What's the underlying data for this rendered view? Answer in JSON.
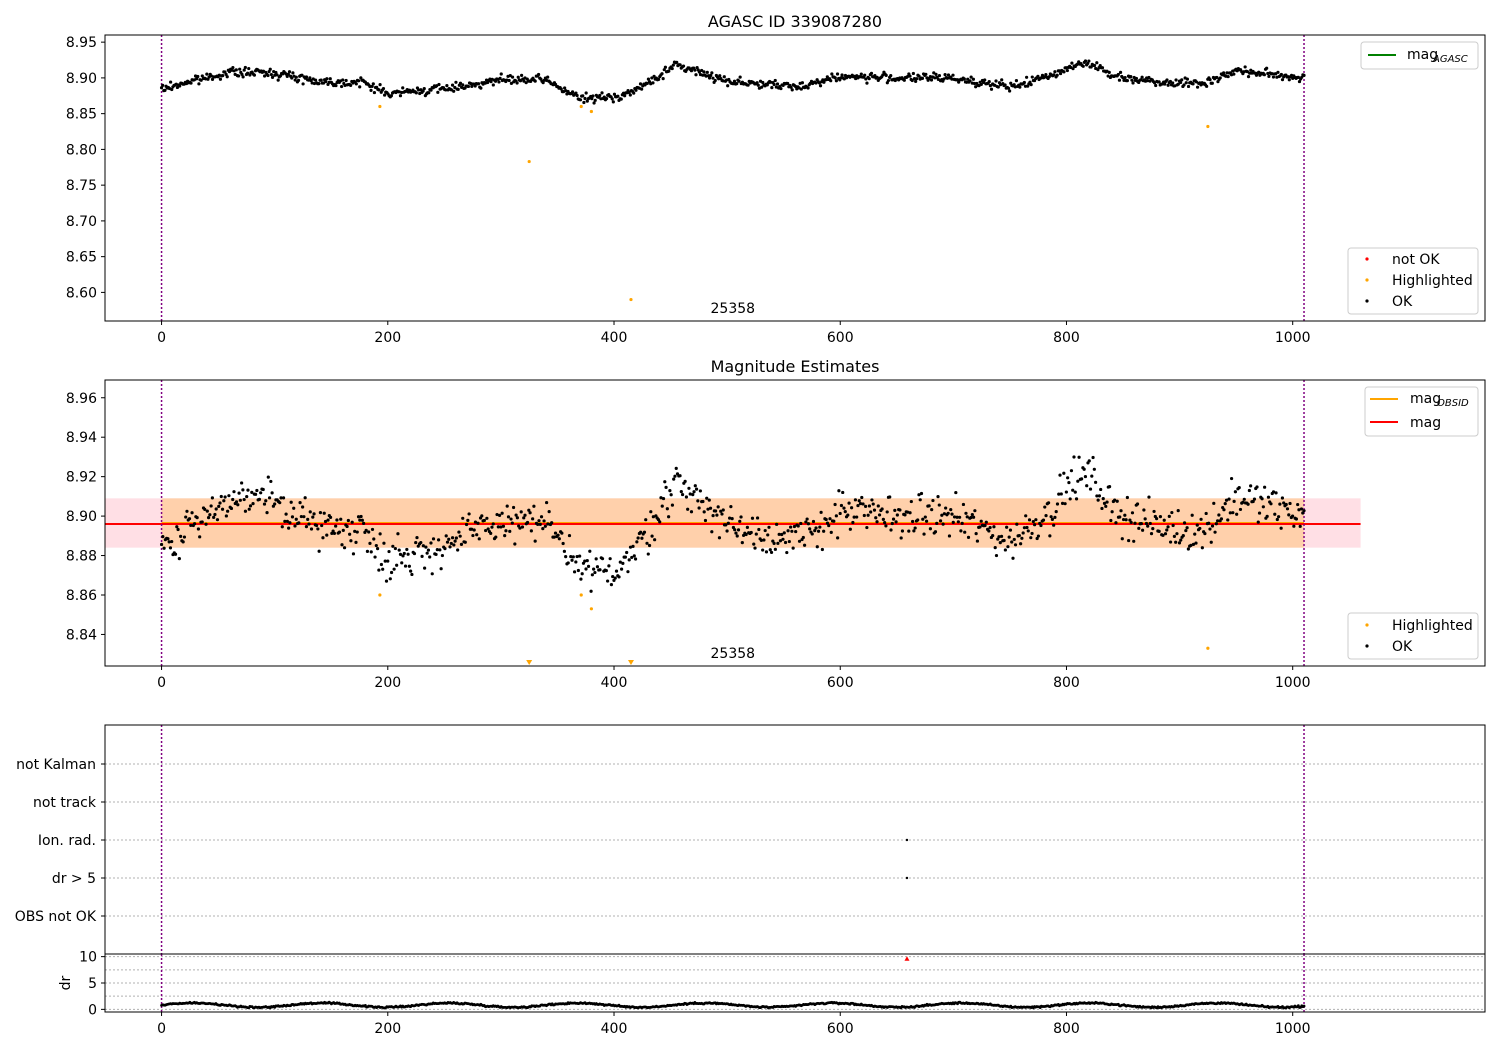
{
  "chart_data": [
    {
      "type": "scatter",
      "title": "AGASC ID 339087280",
      "xlim": [
        -50,
        1170
      ],
      "ylim": [
        8.56,
        8.96
      ],
      "x_ticks": [
        0,
        200,
        400,
        600,
        800,
        1000
      ],
      "y_ticks": [
        8.6,
        8.65,
        8.7,
        8.75,
        8.8,
        8.85,
        8.9,
        8.95
      ],
      "obsid_label": "25358",
      "obsid_label_x": 505,
      "vlines_x": [
        0,
        1010
      ],
      "grid": false,
      "legends": [
        {
          "placement": "top-right",
          "entries": [
            {
              "label": "mag",
              "sub": "AGASC",
              "color": "#008000",
              "kind": "line"
            }
          ]
        },
        {
          "placement": "bottom-right",
          "entries": [
            {
              "label": "not OK",
              "color": "#ff0000",
              "kind": "dot"
            },
            {
              "label": "Highlighted",
              "color": "#ffa500",
              "kind": "dot"
            },
            {
              "label": "OK",
              "color": "#000000",
              "kind": "dot"
            }
          ]
        }
      ],
      "series": [
        {
          "name": "OK",
          "color": "#000000",
          "x_range": [
            0,
            1010
          ],
          "n": 1010,
          "trend": [
            [
              0,
              8.884
            ],
            [
              20,
              8.893
            ],
            [
              60,
              8.908
            ],
            [
              100,
              8.907
            ],
            [
              140,
              8.895
            ],
            [
              180,
              8.893
            ],
            [
              200,
              8.878
            ],
            [
              250,
              8.885
            ],
            [
              300,
              8.897
            ],
            [
              340,
              8.897
            ],
            [
              370,
              8.871
            ],
            [
              400,
              8.873
            ],
            [
              420,
              8.883
            ],
            [
              455,
              8.918
            ],
            [
              500,
              8.896
            ],
            [
              560,
              8.887
            ],
            [
              600,
              8.902
            ],
            [
              650,
              8.9
            ],
            [
              700,
              8.9
            ],
            [
              750,
              8.887
            ],
            [
              790,
              8.905
            ],
            [
              800,
              8.915
            ],
            [
              820,
              8.922
            ],
            [
              840,
              8.903
            ],
            [
              880,
              8.895
            ],
            [
              920,
              8.892
            ],
            [
              950,
              8.91
            ],
            [
              1010,
              8.9
            ]
          ],
          "noise": 0.006
        },
        {
          "name": "Highlighted",
          "color": "#ffa500",
          "points": [
            [
              193,
              8.86
            ],
            [
              325,
              8.783
            ],
            [
              371,
              8.86
            ],
            [
              380,
              8.853
            ],
            [
              415,
              8.59
            ],
            [
              925,
              8.832
            ]
          ]
        }
      ]
    },
    {
      "type": "scatter",
      "title": "Magnitude Estimates",
      "xlim": [
        -50,
        1170
      ],
      "ylim": [
        8.824,
        8.969
      ],
      "x_ticks": [
        0,
        200,
        400,
        600,
        800,
        1000
      ],
      "y_ticks": [
        8.84,
        8.86,
        8.88,
        8.9,
        8.92,
        8.94,
        8.96
      ],
      "obsid_label": "25358",
      "obsid_label_x": 505,
      "vlines_x": [
        0,
        1010
      ],
      "grid": false,
      "mag": 8.896,
      "mag_band": [
        8.884,
        8.909
      ],
      "mag_band_x": [
        -50,
        1060
      ],
      "mag_obsid": 8.8965,
      "mag_obsid_x": [
        0,
        1010
      ],
      "clipped_markers_x": [
        325,
        415
      ],
      "legends": [
        {
          "placement": "top-right",
          "entries": [
            {
              "label": "mag",
              "sub": "OBSID",
              "color": "#ffa500",
              "kind": "line"
            },
            {
              "label": "mag",
              "color": "#ff0000",
              "kind": "line"
            }
          ]
        },
        {
          "placement": "bottom-right",
          "entries": [
            {
              "label": "Highlighted",
              "color": "#ffa500",
              "kind": "dot"
            },
            {
              "label": "OK",
              "color": "#000000",
              "kind": "dot"
            }
          ]
        }
      ],
      "series": [
        {
          "name": "OK",
          "color": "#000000",
          "x_range": [
            0,
            1010
          ],
          "n": 900,
          "same_as_panel": 0,
          "noise": 0.01
        },
        {
          "name": "Highlighted",
          "color": "#ffa500",
          "points": [
            [
              193,
              8.86
            ],
            [
              371,
              8.86
            ],
            [
              380,
              8.853
            ],
            [
              925,
              8.833
            ]
          ]
        }
      ]
    },
    {
      "type": "scatter",
      "title": "",
      "xlim": [
        -50,
        1170
      ],
      "vlines_x": [
        0,
        1010
      ],
      "grid": true,
      "categories": [
        "OBS not OK",
        "dr > 5",
        "Ion. rad.",
        "not track",
        "not Kalman"
      ],
      "flag_points": [
        {
          "x": 659,
          "category": "dr > 5"
        },
        {
          "x": 659,
          "category": "Ion. rad."
        }
      ]
    },
    {
      "type": "scatter",
      "title": "",
      "ylabel": "dr",
      "xlim": [
        -50,
        1170
      ],
      "ylim": [
        -0.5,
        10.5
      ],
      "x_ticks": [
        0,
        200,
        400,
        600,
        800,
        1000
      ],
      "y_ticks": [
        0,
        5,
        10
      ],
      "vlines_x": [
        0,
        1010
      ],
      "grid": true,
      "series": [
        {
          "name": "dr",
          "color": "#000000",
          "x_range": [
            0,
            1010
          ],
          "n": 1010,
          "mean": 0.8,
          "noise": 0.5
        },
        {
          "name": "dr not OK",
          "color": "#ff0000",
          "points": [
            [
              659,
              9.6
            ]
          ]
        }
      ]
    }
  ]
}
